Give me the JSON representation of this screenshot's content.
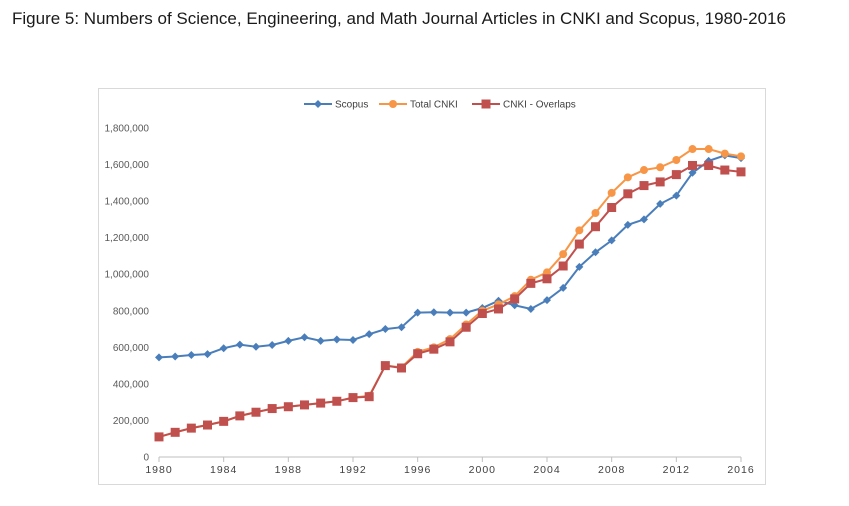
{
  "figure": {
    "title": "Figure 5: Numbers of Science, Engineering, and Math Journal Articles in CNKI and Scopus, 1980-2016"
  },
  "chart_data": {
    "type": "line",
    "title": "",
    "xlabel": "",
    "ylabel": "",
    "xlim": [
      1980,
      2016
    ],
    "ylim": [
      0,
      1800000
    ],
    "y_ticks": [
      "0",
      "200,000",
      "400,000",
      "600,000",
      "800,000",
      "1,000,000",
      "1,200,000",
      "1,400,000",
      "1,600,000",
      "1,800,000"
    ],
    "x_ticks": [
      "1980",
      "1984",
      "1988",
      "1992",
      "1996",
      "2000",
      "2004",
      "2008",
      "2012",
      "2016"
    ],
    "grid": false,
    "legend_position": "top",
    "x": [
      1980,
      1981,
      1982,
      1983,
      1984,
      1985,
      1986,
      1987,
      1988,
      1989,
      1990,
      1991,
      1992,
      1993,
      1994,
      1995,
      1996,
      1997,
      1998,
      1999,
      2000,
      2001,
      2002,
      2003,
      2004,
      2005,
      2006,
      2007,
      2008,
      2009,
      2010,
      2011,
      2012,
      2013,
      2014,
      2015,
      2016
    ],
    "series": [
      {
        "name": "Scopus",
        "color": "#4a7ebb",
        "marker": "diamond",
        "values": [
          545000,
          550000,
          558000,
          563000,
          595000,
          615000,
          603000,
          613000,
          635000,
          655000,
          635000,
          643000,
          640000,
          672000,
          700000,
          710000,
          790000,
          792000,
          790000,
          790000,
          815000,
          855000,
          830000,
          810000,
          858000,
          925000,
          1040000,
          1120000,
          1185000,
          1270000,
          1300000,
          1385000,
          1430000,
          1555000,
          1620000,
          1650000,
          1635000
        ]
      },
      {
        "name": "Total CNKI",
        "color": "#f79646",
        "marker": "circle",
        "values": [
          110000,
          135000,
          158000,
          175000,
          195000,
          225000,
          245000,
          265000,
          275000,
          285000,
          295000,
          305000,
          325000,
          335000,
          500000,
          490000,
          575000,
          600000,
          645000,
          725000,
          800000,
          835000,
          880000,
          970000,
          1010000,
          1110000,
          1240000,
          1335000,
          1445000,
          1530000,
          1570000,
          1585000,
          1625000,
          1685000,
          1685000,
          1660000,
          1645000
        ]
      },
      {
        "name": "CNKI - Overlaps",
        "color": "#c0504d",
        "marker": "square",
        "values": [
          110000,
          135000,
          158000,
          175000,
          195000,
          225000,
          245000,
          265000,
          275000,
          285000,
          295000,
          305000,
          325000,
          330000,
          500000,
          487000,
          565000,
          590000,
          630000,
          710000,
          785000,
          810000,
          865000,
          950000,
          975000,
          1045000,
          1165000,
          1260000,
          1365000,
          1440000,
          1485000,
          1505000,
          1545000,
          1595000,
          1595000,
          1570000,
          1560000
        ]
      }
    ]
  }
}
